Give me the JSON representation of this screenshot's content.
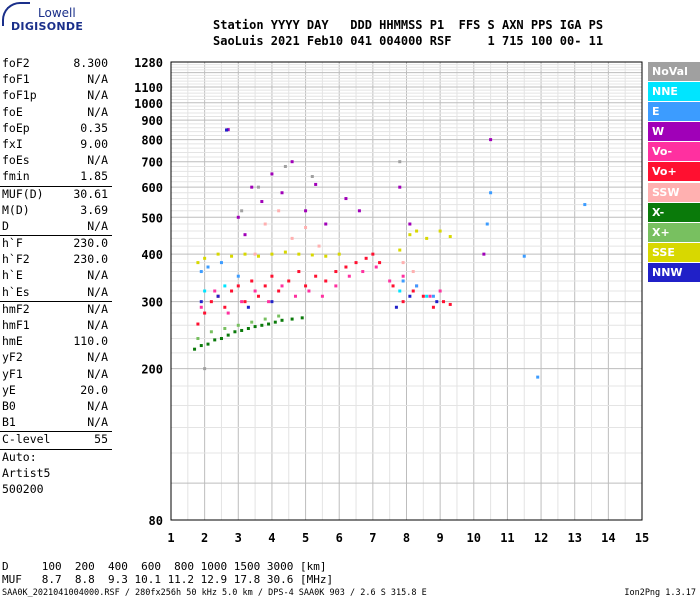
{
  "logo": {
    "top": "Lowell",
    "bottom": "DIGISONDE"
  },
  "header": {
    "row1": "Station YYYY DAY   DDD HHMMSS P1  FFS S AXN PPS IGA PS",
    "row2": "SaoLuis 2021 Feb10 041 004000 RSF     1 715 100 00- 11"
  },
  "parameters": [
    {
      "label": "foF2",
      "value": "8.300"
    },
    {
      "label": "foF1",
      "value": "N/A"
    },
    {
      "label": "foF1p",
      "value": "N/A"
    },
    {
      "label": "foE",
      "value": "N/A"
    },
    {
      "label": "foEp",
      "value": "0.35"
    },
    {
      "label": "fxI",
      "value": "9.00"
    },
    {
      "label": "foEs",
      "value": "N/A"
    },
    {
      "label": "fmin",
      "value": "1.85"
    },
    {
      "label": "MUF(D)",
      "value": "30.61",
      "sep": true
    },
    {
      "label": "M(D)",
      "value": "3.69"
    },
    {
      "label": "D",
      "value": "N/A"
    },
    {
      "label": "h`F",
      "value": "230.0",
      "sep": true
    },
    {
      "label": "h`F2",
      "value": "230.0"
    },
    {
      "label": "h`E",
      "value": "N/A"
    },
    {
      "label": "h`Es",
      "value": "N/A"
    },
    {
      "label": "hmF2",
      "value": "N/A",
      "sep": true
    },
    {
      "label": "hmF1",
      "value": "N/A"
    },
    {
      "label": "hmE",
      "value": "110.0"
    },
    {
      "label": "yF2",
      "value": "N/A"
    },
    {
      "label": "yF1",
      "value": "N/A"
    },
    {
      "label": "yE",
      "value": "20.0"
    },
    {
      "label": "B0",
      "value": "N/A"
    },
    {
      "label": "B1",
      "value": "N/A"
    },
    {
      "label": "C-level",
      "value": "55",
      "sep": true
    },
    {
      "label": "Auto:",
      "value": "",
      "sep": true
    },
    {
      "label": "Artist5",
      "value": ""
    },
    {
      "label": "500200",
      "value": ""
    }
  ],
  "legend": [
    {
      "label": "NoVal",
      "color": "#a0a0a0"
    },
    {
      "label": "NNE",
      "color": "#00e5ff"
    },
    {
      "label": "E",
      "color": "#3c9cff"
    },
    {
      "label": "W",
      "color": "#a000b8"
    },
    {
      "label": "Vo-",
      "color": "#ff30a0"
    },
    {
      "label": "Vo+",
      "color": "#ff1030"
    },
    {
      "label": "SSW",
      "color": "#ffb0b0"
    },
    {
      "label": "X-",
      "color": "#0a7a0a"
    },
    {
      "label": "X+",
      "color": "#78c060"
    },
    {
      "label": "SSE",
      "color": "#d8d800"
    },
    {
      "label": "NNW",
      "color": "#2020c8"
    }
  ],
  "bottom": {
    "d_row": "D     100  200  400  600  800 1000 1500 3000 [km]",
    "muf_row": "MUF   8.7  8.8  9.3 10.1 11.2 12.9 17.8 30.6 [MHz]",
    "footer_left": "SAA0K_2021041004000.RSF / 280fx256h 50 kHz 5.0 km / DPS-4 SAA0K 903 / 2.6 S 315.8 E",
    "footer_right": "Ion2Png 1.3.17"
  },
  "chart_data": {
    "type": "scatter",
    "title": "",
    "xlabel": "",
    "ylabel": "",
    "xlim": [
      1,
      15
    ],
    "ylim": [
      80,
      1280
    ],
    "y_scale": "log",
    "grid": true,
    "x_ticks": [
      1,
      2,
      3,
      4,
      5,
      6,
      7,
      8,
      9,
      10,
      11,
      12,
      13,
      14,
      15
    ],
    "y_ticks": [
      80,
      200,
      300,
      400,
      500,
      600,
      700,
      800,
      900,
      1000,
      1100,
      1280
    ],
    "series": [
      {
        "name": "Vo+",
        "color": "#ff1030",
        "points": [
          [
            1.8,
            262
          ],
          [
            2.0,
            280
          ],
          [
            2.2,
            300
          ],
          [
            2.4,
            310
          ],
          [
            2.6,
            290
          ],
          [
            2.8,
            320
          ],
          [
            3.0,
            330
          ],
          [
            3.2,
            300
          ],
          [
            3.4,
            340
          ],
          [
            3.6,
            310
          ],
          [
            3.8,
            330
          ],
          [
            4.0,
            350
          ],
          [
            4.2,
            320
          ],
          [
            4.5,
            340
          ],
          [
            4.8,
            360
          ],
          [
            5.0,
            330
          ],
          [
            5.3,
            350
          ],
          [
            5.6,
            340
          ],
          [
            5.9,
            360
          ],
          [
            6.2,
            370
          ],
          [
            6.5,
            380
          ],
          [
            6.8,
            390
          ],
          [
            7.0,
            400
          ],
          [
            7.2,
            380
          ],
          [
            7.6,
            330
          ],
          [
            7.9,
            300
          ],
          [
            8.2,
            320
          ],
          [
            8.5,
            310
          ],
          [
            8.8,
            290
          ],
          [
            9.1,
            300
          ],
          [
            9.3,
            295
          ]
        ]
      },
      {
        "name": "Vo-",
        "color": "#ff30a0",
        "points": [
          [
            1.9,
            290
          ],
          [
            2.3,
            320
          ],
          [
            2.7,
            280
          ],
          [
            3.1,
            300
          ],
          [
            3.5,
            320
          ],
          [
            3.9,
            300
          ],
          [
            4.3,
            330
          ],
          [
            4.7,
            310
          ],
          [
            5.1,
            320
          ],
          [
            5.5,
            310
          ],
          [
            5.9,
            330
          ],
          [
            6.3,
            350
          ],
          [
            6.7,
            360
          ],
          [
            7.1,
            370
          ],
          [
            7.5,
            340
          ],
          [
            7.9,
            350
          ],
          [
            8.3,
            330
          ],
          [
            8.7,
            310
          ],
          [
            9.0,
            320
          ]
        ]
      },
      {
        "name": "X-",
        "color": "#0a7a0a",
        "points": [
          [
            1.7,
            225
          ],
          [
            1.9,
            230
          ],
          [
            2.1,
            232
          ],
          [
            2.3,
            238
          ],
          [
            2.5,
            240
          ],
          [
            2.7,
            245
          ],
          [
            2.9,
            250
          ],
          [
            3.1,
            252
          ],
          [
            3.3,
            255
          ],
          [
            3.5,
            258
          ],
          [
            3.7,
            260
          ],
          [
            3.9,
            262
          ],
          [
            4.1,
            265
          ],
          [
            4.3,
            268
          ],
          [
            4.6,
            270
          ],
          [
            4.9,
            272
          ]
        ]
      },
      {
        "name": "X+",
        "color": "#78c060",
        "points": [
          [
            1.8,
            240
          ],
          [
            2.2,
            250
          ],
          [
            2.6,
            255
          ],
          [
            3.0,
            260
          ],
          [
            3.4,
            265
          ],
          [
            3.8,
            270
          ],
          [
            4.2,
            275
          ]
        ]
      },
      {
        "name": "SSE",
        "color": "#d8d800",
        "points": [
          [
            1.8,
            380
          ],
          [
            2.0,
            390
          ],
          [
            2.4,
            400
          ],
          [
            2.8,
            395
          ],
          [
            3.2,
            400
          ],
          [
            3.6,
            395
          ],
          [
            4.0,
            400
          ],
          [
            4.4,
            405
          ],
          [
            4.8,
            400
          ],
          [
            5.2,
            398
          ],
          [
            5.6,
            395
          ],
          [
            6.0,
            400
          ],
          [
            7.8,
            410
          ],
          [
            8.1,
            450
          ],
          [
            8.3,
            460
          ],
          [
            8.6,
            440
          ],
          [
            9.0,
            460
          ],
          [
            9.3,
            445
          ]
        ]
      },
      {
        "name": "E",
        "color": "#3c9cff",
        "points": [
          [
            1.9,
            360
          ],
          [
            2.1,
            370
          ],
          [
            2.5,
            380
          ],
          [
            3.0,
            350
          ],
          [
            7.9,
            340
          ],
          [
            8.3,
            330
          ],
          [
            8.8,
            310
          ],
          [
            10.4,
            480
          ],
          [
            10.5,
            580
          ],
          [
            11.5,
            395
          ],
          [
            13.3,
            540
          ],
          [
            11.9,
            190
          ]
        ]
      },
      {
        "name": "W",
        "color": "#a000b8",
        "points": [
          [
            3.0,
            500
          ],
          [
            3.2,
            450
          ],
          [
            3.4,
            600
          ],
          [
            3.7,
            550
          ],
          [
            4.0,
            650
          ],
          [
            4.3,
            580
          ],
          [
            4.6,
            700
          ],
          [
            5.0,
            520
          ],
          [
            5.3,
            610
          ],
          [
            5.6,
            480
          ],
          [
            6.2,
            560
          ],
          [
            6.6,
            520
          ],
          [
            7.8,
            600
          ],
          [
            8.1,
            480
          ],
          [
            10.5,
            800
          ],
          [
            10.3,
            400
          ],
          [
            2.7,
            850
          ]
        ]
      },
      {
        "name": "SSW",
        "color": "#ffb0b0",
        "points": [
          [
            3.5,
            400
          ],
          [
            3.8,
            480
          ],
          [
            4.2,
            520
          ],
          [
            4.6,
            440
          ],
          [
            5.0,
            470
          ],
          [
            5.4,
            420
          ],
          [
            7.9,
            380
          ],
          [
            8.2,
            360
          ]
        ]
      },
      {
        "name": "NNW",
        "color": "#2020c8",
        "points": [
          [
            1.9,
            300
          ],
          [
            2.4,
            310
          ],
          [
            3.3,
            290
          ],
          [
            4.0,
            300
          ],
          [
            7.7,
            290
          ],
          [
            8.1,
            310
          ],
          [
            8.9,
            300
          ],
          [
            2.65,
            848
          ]
        ]
      },
      {
        "name": "NNE",
        "color": "#00e5ff",
        "points": [
          [
            2.0,
            320
          ],
          [
            2.6,
            330
          ],
          [
            7.8,
            320
          ],
          [
            8.6,
            310
          ]
        ]
      },
      {
        "name": "NoVal",
        "color": "#a0a0a0",
        "points": [
          [
            3.1,
            520
          ],
          [
            3.6,
            600
          ],
          [
            4.4,
            680
          ],
          [
            5.2,
            640
          ],
          [
            7.8,
            700
          ],
          [
            2.0,
            200
          ]
        ]
      }
    ]
  }
}
